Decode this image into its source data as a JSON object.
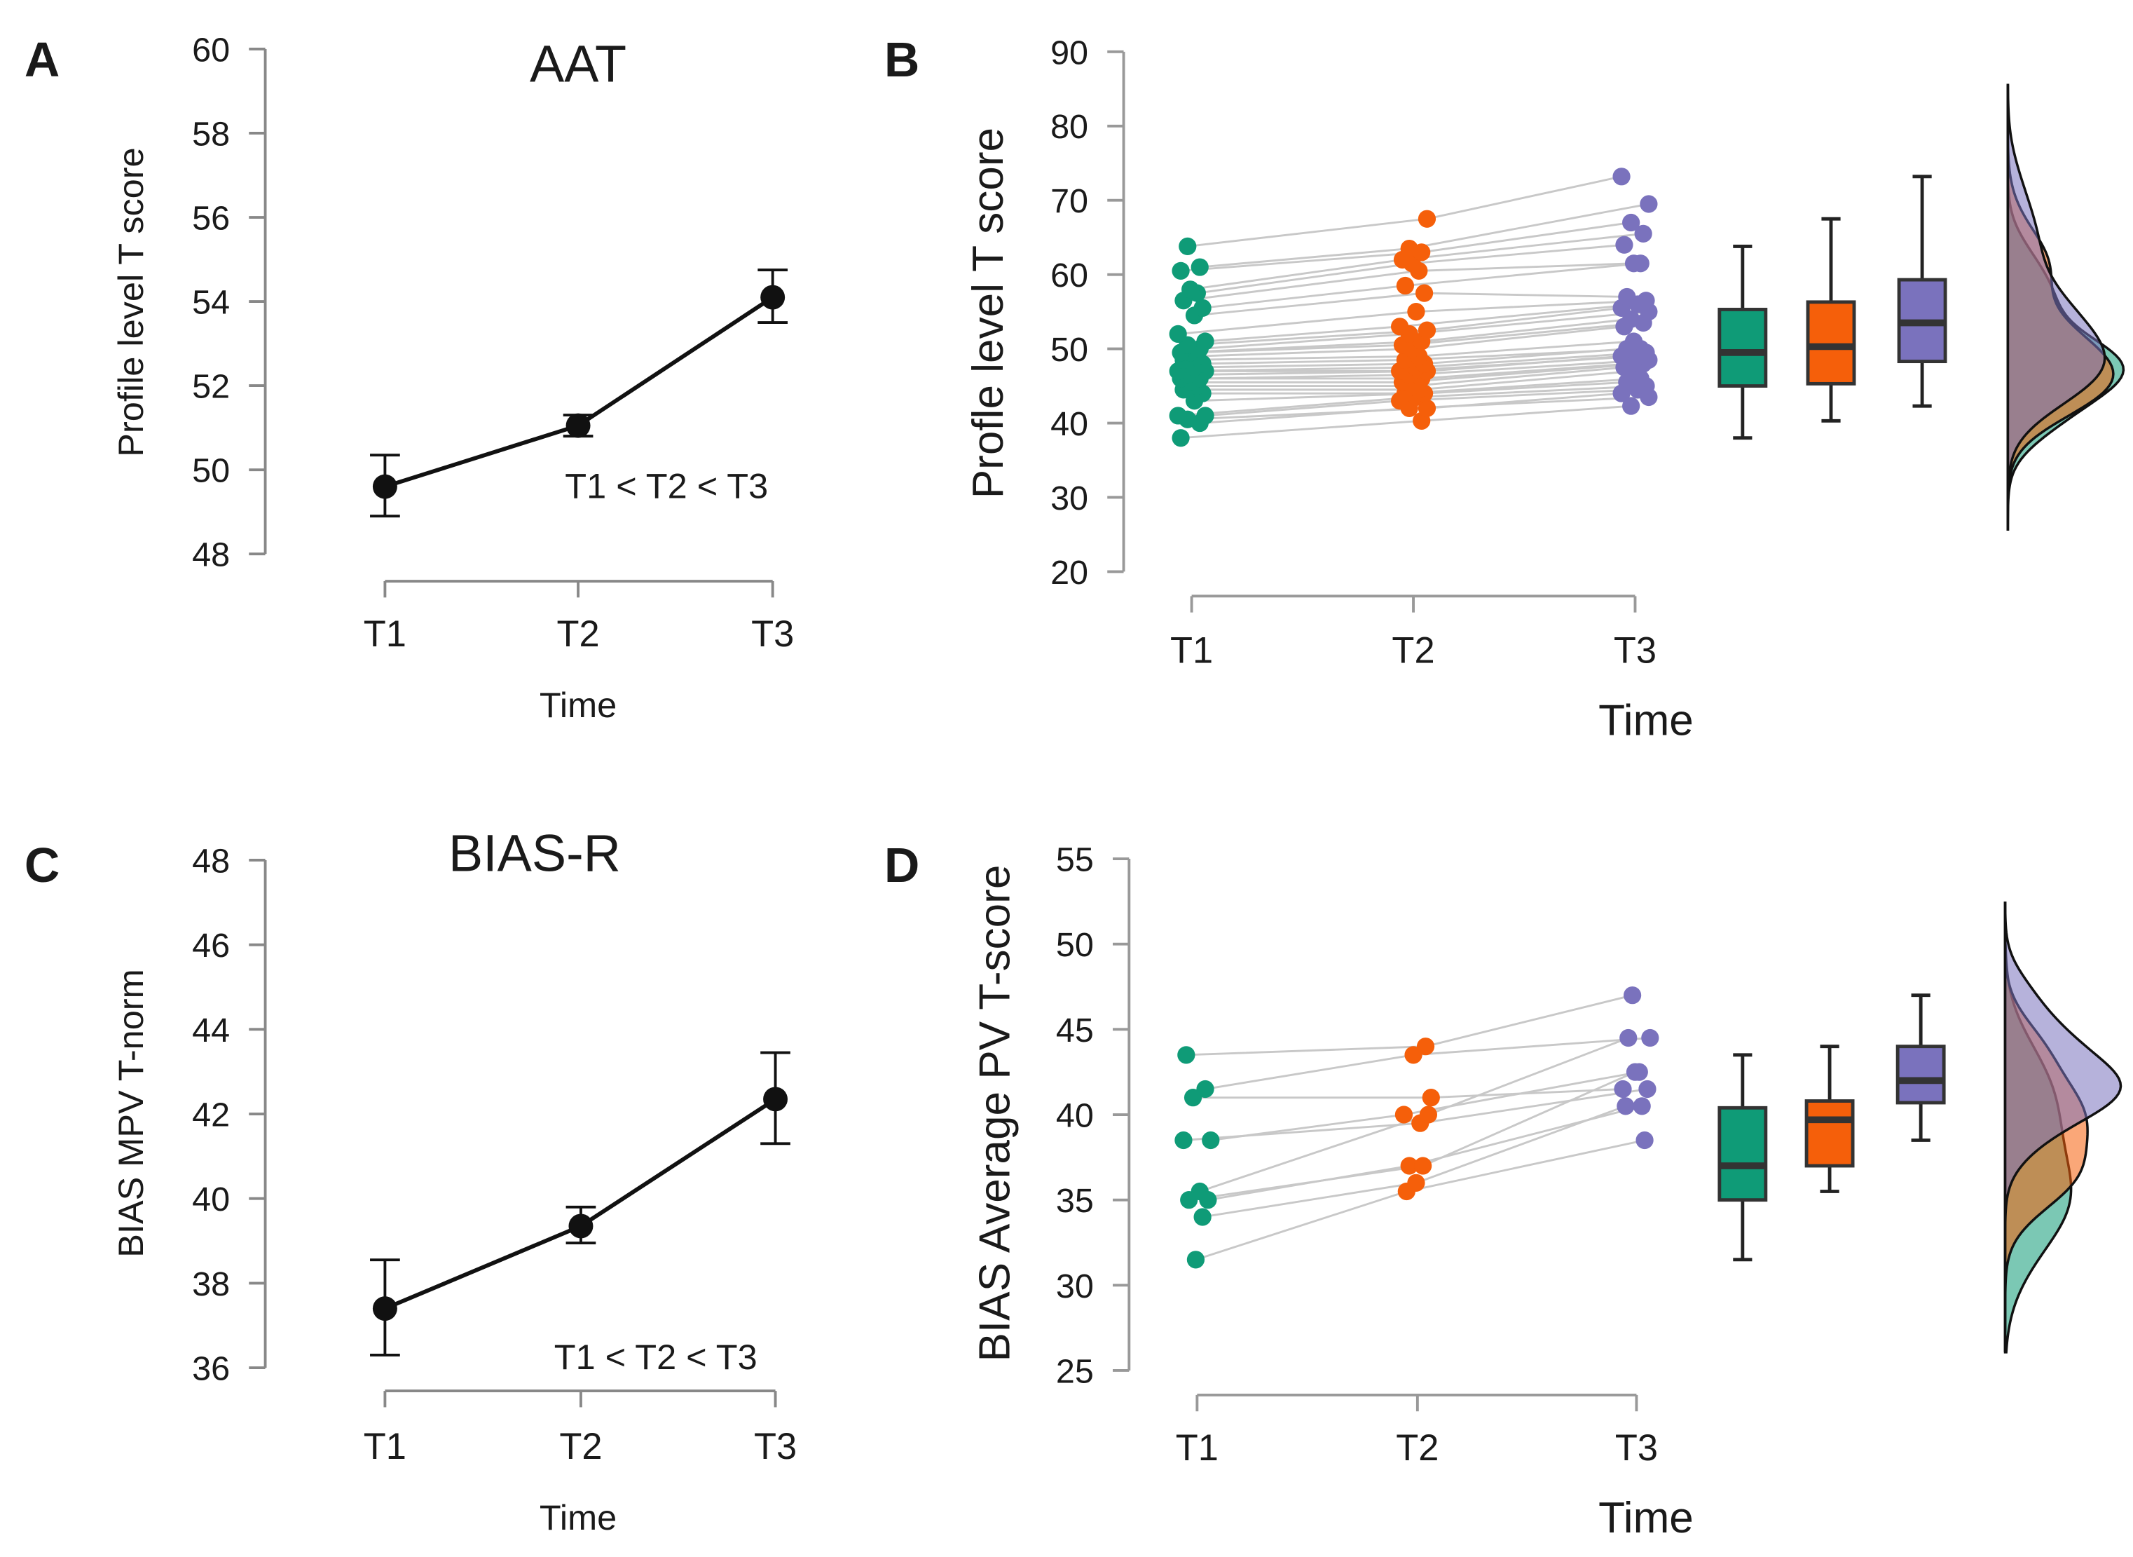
{
  "chart_data": [
    {
      "panel": "A",
      "type": "line",
      "title": "AAT",
      "xlabel": "Time",
      "ylabel": "Profile level T score",
      "categories": [
        "T1",
        "T2",
        "T3"
      ],
      "values": [
        49.6,
        51.05,
        54.1
      ],
      "error_low": [
        48.9,
        50.8,
        53.5
      ],
      "error_high": [
        50.35,
        51.3,
        54.75
      ],
      "ylim": [
        48,
        60
      ],
      "yticks": [
        48,
        50,
        52,
        54,
        56,
        58,
        60
      ],
      "annotation": "T1 < T2 < T3"
    },
    {
      "panel": "B",
      "type": "scatter",
      "title": "",
      "xlabel": "Time",
      "ylabel": "Profle level T score",
      "categories": [
        "T1",
        "T2",
        "T3"
      ],
      "ylim": [
        20,
        90
      ],
      "yticks": [
        20,
        30,
        40,
        50,
        60,
        70,
        80,
        90
      ],
      "colors": [
        "#0f9b77",
        "#f55f0a",
        "#7a72bd"
      ],
      "series": [
        {
          "name": "T1",
          "values": [
            38,
            40,
            40.5,
            41,
            41,
            43,
            44,
            44.5,
            45,
            45.5,
            46,
            46,
            46.5,
            47,
            47,
            47.5,
            48,
            48.5,
            49,
            49.5,
            49.5,
            50,
            50.5,
            51,
            52,
            54.5,
            55.5,
            56.5,
            57.5,
            58,
            60.5,
            61,
            63.8
          ]
        },
        {
          "name": "T2",
          "values": [
            40.3,
            42,
            42,
            43,
            43.5,
            44,
            44,
            44.5,
            45,
            45.5,
            46,
            46.5,
            47,
            47,
            47.5,
            48,
            48.5,
            49,
            50,
            50.5,
            51,
            52,
            52.5,
            53,
            55,
            57.5,
            58.5,
            60.5,
            61.5,
            62,
            63,
            63.5,
            67.5
          ]
        },
        {
          "name": "T3",
          "values": [
            42.3,
            43.5,
            44,
            44.5,
            45,
            45.5,
            46,
            47,
            47.5,
            48,
            48,
            48.5,
            49,
            49,
            49.5,
            50,
            50,
            51,
            53,
            53.5,
            54,
            55,
            55.5,
            56,
            56.5,
            57,
            61.5,
            61.5,
            64,
            65.5,
            67,
            69.5,
            73.2
          ]
        }
      ],
      "boxplots": [
        {
          "name": "T1",
          "min": 38,
          "q1": 45,
          "median": 49.5,
          "q3": 55.3,
          "max": 63.8
        },
        {
          "name": "T2",
          "min": 40.3,
          "q1": 45.3,
          "median": 50.3,
          "q3": 56.3,
          "max": 67.5
        },
        {
          "name": "T3",
          "min": 42.3,
          "q1": 48.3,
          "median": 53.5,
          "q3": 59.3,
          "max": 73.2
        }
      ]
    },
    {
      "panel": "C",
      "type": "line",
      "title": "BIAS-R",
      "xlabel": "Time",
      "ylabel": "BIAS MPV T-norm",
      "categories": [
        "T1",
        "T2",
        "T3"
      ],
      "values": [
        37.4,
        39.35,
        42.35
      ],
      "error_low": [
        36.3,
        38.95,
        41.3
      ],
      "error_high": [
        38.55,
        39.8,
        43.45
      ],
      "ylim": [
        36,
        48
      ],
      "yticks": [
        36,
        38,
        40,
        42,
        44,
        46,
        48
      ],
      "annotation": "T1 < T2 < T3"
    },
    {
      "panel": "D",
      "type": "scatter",
      "title": "",
      "xlabel": "Time",
      "ylabel": "BIAS Average PV T-score",
      "categories": [
        "T1",
        "T2",
        "T3"
      ],
      "ylim": [
        25,
        55
      ],
      "yticks": [
        25,
        30,
        35,
        40,
        45,
        50,
        55
      ],
      "colors": [
        "#0f9b77",
        "#f55f0a",
        "#7a72bd"
      ],
      "series": [
        {
          "name": "T1",
          "values": [
            43.5,
            41.5,
            41,
            38.5,
            38.5,
            35.5,
            35,
            35,
            34,
            31.5
          ]
        },
        {
          "name": "T2",
          "values": [
            44,
            43.5,
            41,
            40,
            39.5,
            40,
            37,
            37,
            36,
            35.5
          ]
        },
        {
          "name": "T3",
          "values": [
            47,
            44.5,
            41.5,
            42.5,
            41.5,
            44.5,
            40.5,
            42.5,
            40.5,
            38.5
          ]
        }
      ],
      "boxplots": [
        {
          "name": "T1",
          "min": 31.5,
          "q1": 35,
          "median": 37,
          "q3": 40.4,
          "max": 43.5
        },
        {
          "name": "T2",
          "min": 35.5,
          "q1": 37,
          "median": 39.7,
          "q3": 40.8,
          "max": 44
        },
        {
          "name": "T3",
          "min": 38.5,
          "q1": 40.7,
          "median": 42,
          "q3": 44,
          "max": 47
        }
      ]
    }
  ]
}
